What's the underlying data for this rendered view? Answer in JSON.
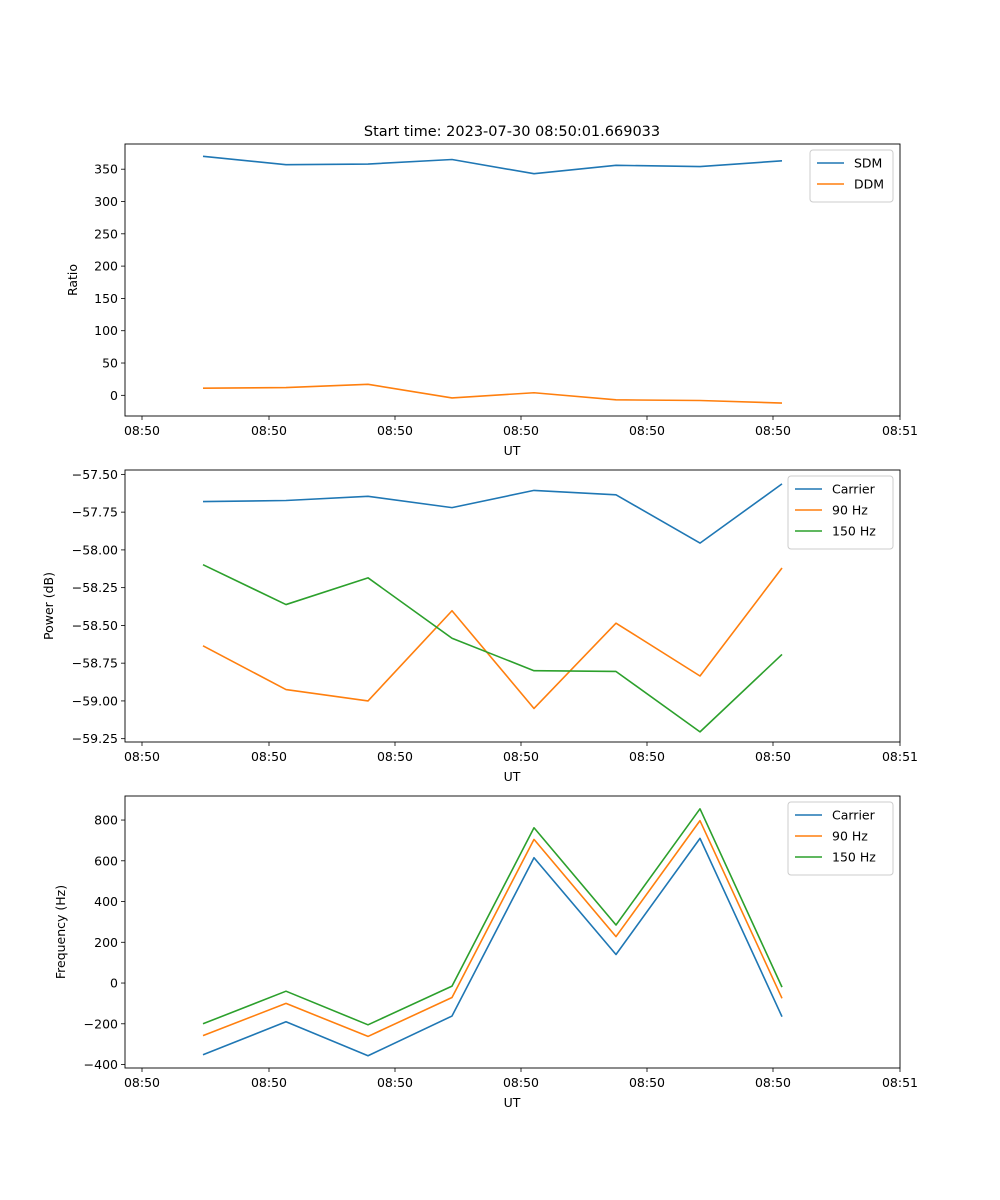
{
  "figure": {
    "title": "Start time: 2023-07-30 08:50:01.669033"
  },
  "chart_data": [
    {
      "type": "line",
      "title": "Start time: 2023-07-30 08:50:01.669033",
      "xlabel": "UT",
      "ylabel": "Ratio",
      "x_ticks": [
        "08:50",
        "08:50",
        "08:50",
        "08:50",
        "08:50",
        "08:50",
        "08:51"
      ],
      "y_ticks": [
        "0",
        "50",
        "100",
        "150",
        "200",
        "250",
        "300",
        "350"
      ],
      "ylim": [
        -32,
        389
      ],
      "x_points": 8,
      "legend": "top-right",
      "series": [
        {
          "name": "SDM",
          "color": "#1f77b4",
          "values": [
            370,
            357,
            358,
            365,
            343,
            356,
            354,
            363
          ]
        },
        {
          "name": "DDM",
          "color": "#ff7f0e",
          "values": [
            11,
            12,
            17,
            -4,
            4,
            -7,
            -8,
            -12
          ]
        }
      ]
    },
    {
      "type": "line",
      "title": "",
      "xlabel": "UT",
      "ylabel": "Power (dB)",
      "x_ticks": [
        "08:50",
        "08:50",
        "08:50",
        "08:50",
        "08:50",
        "08:50",
        "08:51"
      ],
      "y_ticks": [
        "−59.25",
        "−59.00",
        "−58.75",
        "−58.50",
        "−58.25",
        "−58.00",
        "−57.75",
        "−57.50"
      ],
      "ylim": [
        -59.272,
        -57.471
      ],
      "x_points": 8,
      "legend": "top-right",
      "series": [
        {
          "name": "Carrier",
          "color": "#1f77b4",
          "values": [
            -57.68,
            -57.673,
            -57.645,
            -57.72,
            -57.606,
            -57.635,
            -57.955,
            -57.563
          ]
        },
        {
          "name": "90 Hz",
          "color": "#ff7f0e",
          "values": [
            -58.635,
            -58.925,
            -59.0,
            -58.403,
            -59.05,
            -58.485,
            -58.835,
            -58.12
          ]
        },
        {
          "name": "150 Hz",
          "color": "#2ca02c",
          "values": [
            -58.098,
            -58.362,
            -58.185,
            -58.585,
            -58.8,
            -58.805,
            -59.205,
            -58.692
          ]
        }
      ]
    },
    {
      "type": "line",
      "title": "",
      "xlabel": "UT",
      "ylabel": "Frequency (Hz)",
      "x_ticks": [
        "08:50",
        "08:50",
        "08:50",
        "08:50",
        "08:50",
        "08:50",
        "08:51"
      ],
      "y_ticks": [
        "−400",
        "−200",
        "0",
        "200",
        "400",
        "600",
        "800"
      ],
      "ylim": [
        -417,
        918
      ],
      "x_points": 8,
      "legend": "top-right",
      "series": [
        {
          "name": "Carrier",
          "color": "#1f77b4",
          "values": [
            -352,
            -190,
            -357,
            -162,
            615,
            140,
            710,
            -165
          ]
        },
        {
          "name": "90 Hz",
          "color": "#ff7f0e",
          "values": [
            -258,
            -100,
            -262,
            -71,
            705,
            228,
            797,
            -75
          ]
        },
        {
          "name": "150 Hz",
          "color": "#2ca02c",
          "values": [
            -200,
            -40,
            -205,
            -15,
            762,
            285,
            855,
            -20
          ]
        }
      ]
    }
  ]
}
